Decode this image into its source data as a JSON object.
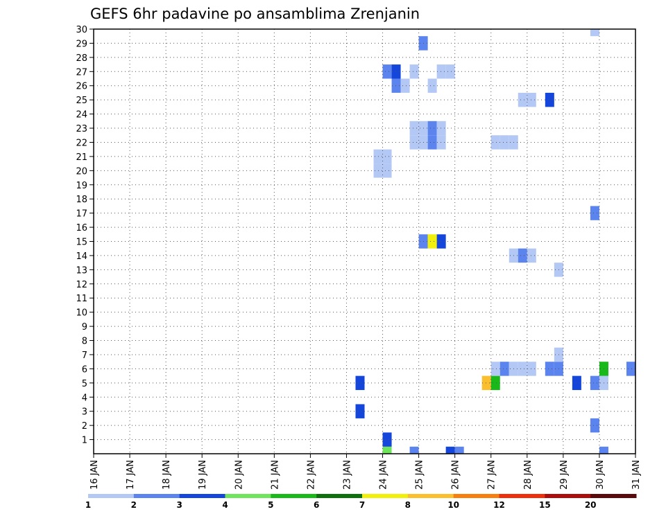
{
  "chart_data": {
    "type": "heatmap",
    "title": "GEFS 6hr padavine po ansamblima Zrenjanin",
    "x_tick_labels": [
      "16 JAN",
      "17 JAN",
      "18 JAN",
      "19 JAN",
      "20 JAN",
      "21 JAN",
      "22 JAN",
      "23 JAN",
      "24 JAN",
      "25 JAN",
      "26 JAN",
      "27 JAN",
      "28 JAN",
      "29 JAN",
      "30 JAN",
      "31 JAN"
    ],
    "xlim": [
      "16 JAN 00h",
      "31 JAN 00h"
    ],
    "x_step_hours": 6,
    "y_tick_labels": [
      "1",
      "2",
      "3",
      "4",
      "5",
      "6",
      "7",
      "8",
      "9",
      "10",
      "11",
      "12",
      "13",
      "14",
      "15",
      "16",
      "17",
      "18",
      "19",
      "20",
      "21",
      "22",
      "23",
      "24",
      "25",
      "26",
      "27",
      "28",
      "29",
      "30"
    ],
    "ylim": [
      0,
      30
    ],
    "grid": true,
    "legend": {
      "placement": "bottom",
      "labels": [
        "1",
        "2",
        "3",
        "4",
        "5",
        "6",
        "7",
        "8",
        "10",
        "12",
        "15",
        "20"
      ],
      "colors": [
        "#b4c8f5",
        "#5c84ee",
        "#1446db",
        "#6ee55a",
        "#19b919",
        "#0d700d",
        "#f0f00a",
        "#fbbe2d",
        "#f77f0e",
        "#ee2f0c",
        "#ab0c0c",
        "#5a0a0a"
      ]
    },
    "series": [
      {
        "day": 23,
        "hour": 6,
        "member": 3,
        "value": 3
      },
      {
        "day": 23,
        "hour": 6,
        "member": 5,
        "value": 3
      },
      {
        "day": 23,
        "hour": 18,
        "member": 20,
        "value": 1
      },
      {
        "day": 23,
        "hour": 18,
        "member": 21,
        "value": 1
      },
      {
        "day": 24,
        "hour": 0,
        "member": 0,
        "value": 4
      },
      {
        "day": 24,
        "hour": 0,
        "member": 1,
        "value": 3
      },
      {
        "day": 24,
        "hour": 0,
        "member": 20,
        "value": 1
      },
      {
        "day": 24,
        "hour": 0,
        "member": 21,
        "value": 1
      },
      {
        "day": 24,
        "hour": 0,
        "member": 27,
        "value": 2
      },
      {
        "day": 24,
        "hour": 6,
        "member": 27,
        "value": 3
      },
      {
        "day": 24,
        "hour": 6,
        "member": 26,
        "value": 2
      },
      {
        "day": 24,
        "hour": 12,
        "member": 26,
        "value": 1
      },
      {
        "day": 24,
        "hour": 18,
        "member": 0,
        "value": 2
      },
      {
        "day": 24,
        "hour": 18,
        "member": 22,
        "value": 1
      },
      {
        "day": 24,
        "hour": 18,
        "member": 23,
        "value": 1
      },
      {
        "day": 24,
        "hour": 18,
        "member": 27,
        "value": 1
      },
      {
        "day": 25,
        "hour": 0,
        "member": 22,
        "value": 1
      },
      {
        "day": 25,
        "hour": 0,
        "member": 23,
        "value": 1
      },
      {
        "day": 25,
        "hour": 0,
        "member": 29,
        "value": 2
      },
      {
        "day": 25,
        "hour": 0,
        "member": 15,
        "value": 2
      },
      {
        "day": 25,
        "hour": 6,
        "member": 15,
        "value": 7
      },
      {
        "day": 25,
        "hour": 6,
        "member": 22,
        "value": 2
      },
      {
        "day": 25,
        "hour": 6,
        "member": 23,
        "value": 2
      },
      {
        "day": 25,
        "hour": 6,
        "member": 26,
        "value": 1
      },
      {
        "day": 25,
        "hour": 12,
        "member": 15,
        "value": 3
      },
      {
        "day": 25,
        "hour": 12,
        "member": 22,
        "value": 1
      },
      {
        "day": 25,
        "hour": 12,
        "member": 23,
        "value": 1
      },
      {
        "day": 25,
        "hour": 12,
        "member": 27,
        "value": 1
      },
      {
        "day": 25,
        "hour": 18,
        "member": 27,
        "value": 1
      },
      {
        "day": 25,
        "hour": 18,
        "member": 0,
        "value": 3
      },
      {
        "day": 26,
        "hour": 0,
        "member": 0,
        "value": 2
      },
      {
        "day": 26,
        "hour": 18,
        "member": 5,
        "value": 9
      },
      {
        "day": 27,
        "hour": 0,
        "member": 5,
        "value": 5
      },
      {
        "day": 27,
        "hour": 0,
        "member": 6,
        "value": 1
      },
      {
        "day": 27,
        "hour": 0,
        "member": 22,
        "value": 1
      },
      {
        "day": 27,
        "hour": 6,
        "member": 22,
        "value": 1
      },
      {
        "day": 27,
        "hour": 6,
        "member": 6,
        "value": 2
      },
      {
        "day": 27,
        "hour": 12,
        "member": 22,
        "value": 1
      },
      {
        "day": 27,
        "hour": 12,
        "member": 6,
        "value": 1
      },
      {
        "day": 27,
        "hour": 12,
        "member": 14,
        "value": 1
      },
      {
        "day": 27,
        "hour": 18,
        "member": 6,
        "value": 1
      },
      {
        "day": 27,
        "hour": 18,
        "member": 14,
        "value": 2
      },
      {
        "day": 27,
        "hour": 18,
        "member": 25,
        "value": 1
      },
      {
        "day": 28,
        "hour": 0,
        "member": 6,
        "value": 1
      },
      {
        "day": 28,
        "hour": 0,
        "member": 14,
        "value": 1
      },
      {
        "day": 28,
        "hour": 0,
        "member": 25,
        "value": 1
      },
      {
        "day": 28,
        "hour": 12,
        "member": 25,
        "value": 3
      },
      {
        "day": 28,
        "hour": 12,
        "member": 6,
        "value": 2
      },
      {
        "day": 28,
        "hour": 18,
        "member": 6,
        "value": 2
      },
      {
        "day": 28,
        "hour": 18,
        "member": 7,
        "value": 1
      },
      {
        "day": 28,
        "hour": 18,
        "member": 13,
        "value": 1
      },
      {
        "day": 29,
        "hour": 6,
        "member": 5,
        "value": 3
      },
      {
        "day": 29,
        "hour": 18,
        "member": 2,
        "value": 2
      },
      {
        "day": 29,
        "hour": 18,
        "member": 5,
        "value": 2
      },
      {
        "day": 29,
        "hour": 18,
        "member": 17,
        "value": 2
      },
      {
        "day": 29,
        "hour": 18,
        "member": 30,
        "value": 1
      },
      {
        "day": 30,
        "hour": 0,
        "member": 0,
        "value": 2
      },
      {
        "day": 30,
        "hour": 0,
        "member": 5,
        "value": 1
      },
      {
        "day": 30,
        "hour": 0,
        "member": 6,
        "value": 5
      },
      {
        "day": 30,
        "hour": 18,
        "member": 6,
        "value": 2
      }
    ]
  }
}
